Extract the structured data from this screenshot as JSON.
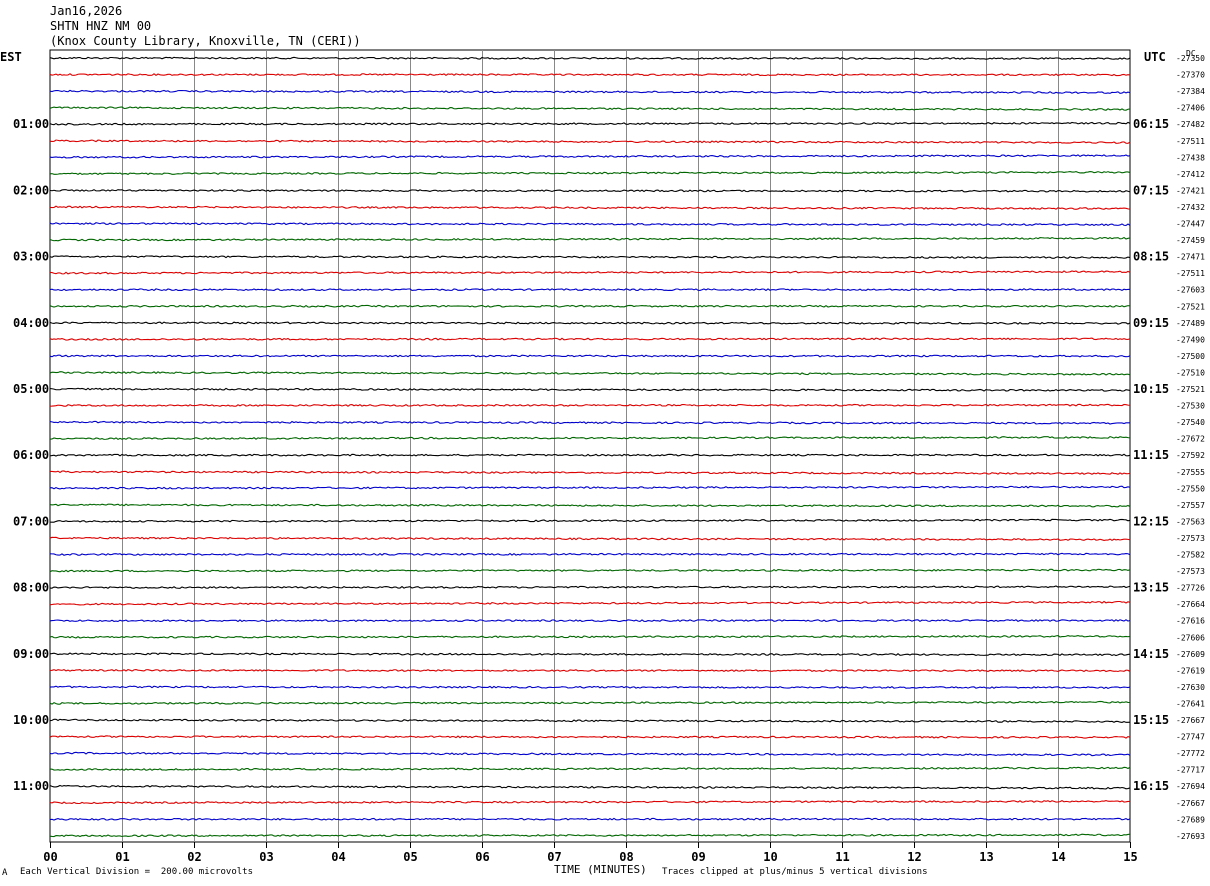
{
  "header": {
    "date": "Jan16,2026",
    "station": "SHTN HNZ NM 00",
    "location": "(Knox County Library, Knoxville, TN (CERI))"
  },
  "left_zone": "EST",
  "right_zone": "UTC",
  "dc_label": "DC",
  "footer": {
    "scale_note": "Each Vertical Division =  200.00 microvolts",
    "xlabel": "TIME (MINUTES)",
    "clip_note": "Traces clipped at plus/minus 5 vertical divisions",
    "corner_mark": "A"
  },
  "chart_data": {
    "type": "line",
    "subtype": "helicorder",
    "x_range": [
      0,
      15
    ],
    "x_tick_labels": [
      "00",
      "01",
      "02",
      "03",
      "04",
      "05",
      "06",
      "07",
      "08",
      "09",
      "10",
      "11",
      "12",
      "13",
      "14",
      "15"
    ],
    "trace_colors": [
      "#000000",
      "#dd0000",
      "#0000cc",
      "#006600"
    ],
    "left_hour_labels": [
      "01:00",
      "02:00",
      "03:00",
      "04:00",
      "05:00",
      "06:00",
      "07:00",
      "08:00",
      "09:00",
      "10:00",
      "11:00"
    ],
    "right_hour_labels": [
      "06:15",
      "07:15",
      "08:15",
      "09:15",
      "10:15",
      "11:15",
      "12:15",
      "13:15",
      "14:15",
      "15:15",
      "16:15"
    ],
    "dc_offsets": [
      -27350,
      -27370,
      -27384,
      -27406,
      -27482,
      -27511,
      -27438,
      -27412,
      -27421,
      -27432,
      -27447,
      -27459,
      -27471,
      -27511,
      -27603,
      -27521,
      -27489,
      -27490,
      -27500,
      -27510,
      -27521,
      -27530,
      -27540,
      -27672,
      -27592,
      -27555,
      -27550,
      -27557,
      -27563,
      -27573,
      -27582,
      -27573,
      -27726,
      -27664,
      -27616,
      -27606,
      -27609,
      -27619,
      -27630,
      -27641,
      -27667,
      -27747,
      -27772,
      -27717,
      -27694,
      -27667,
      -27689,
      -27693
    ]
  }
}
